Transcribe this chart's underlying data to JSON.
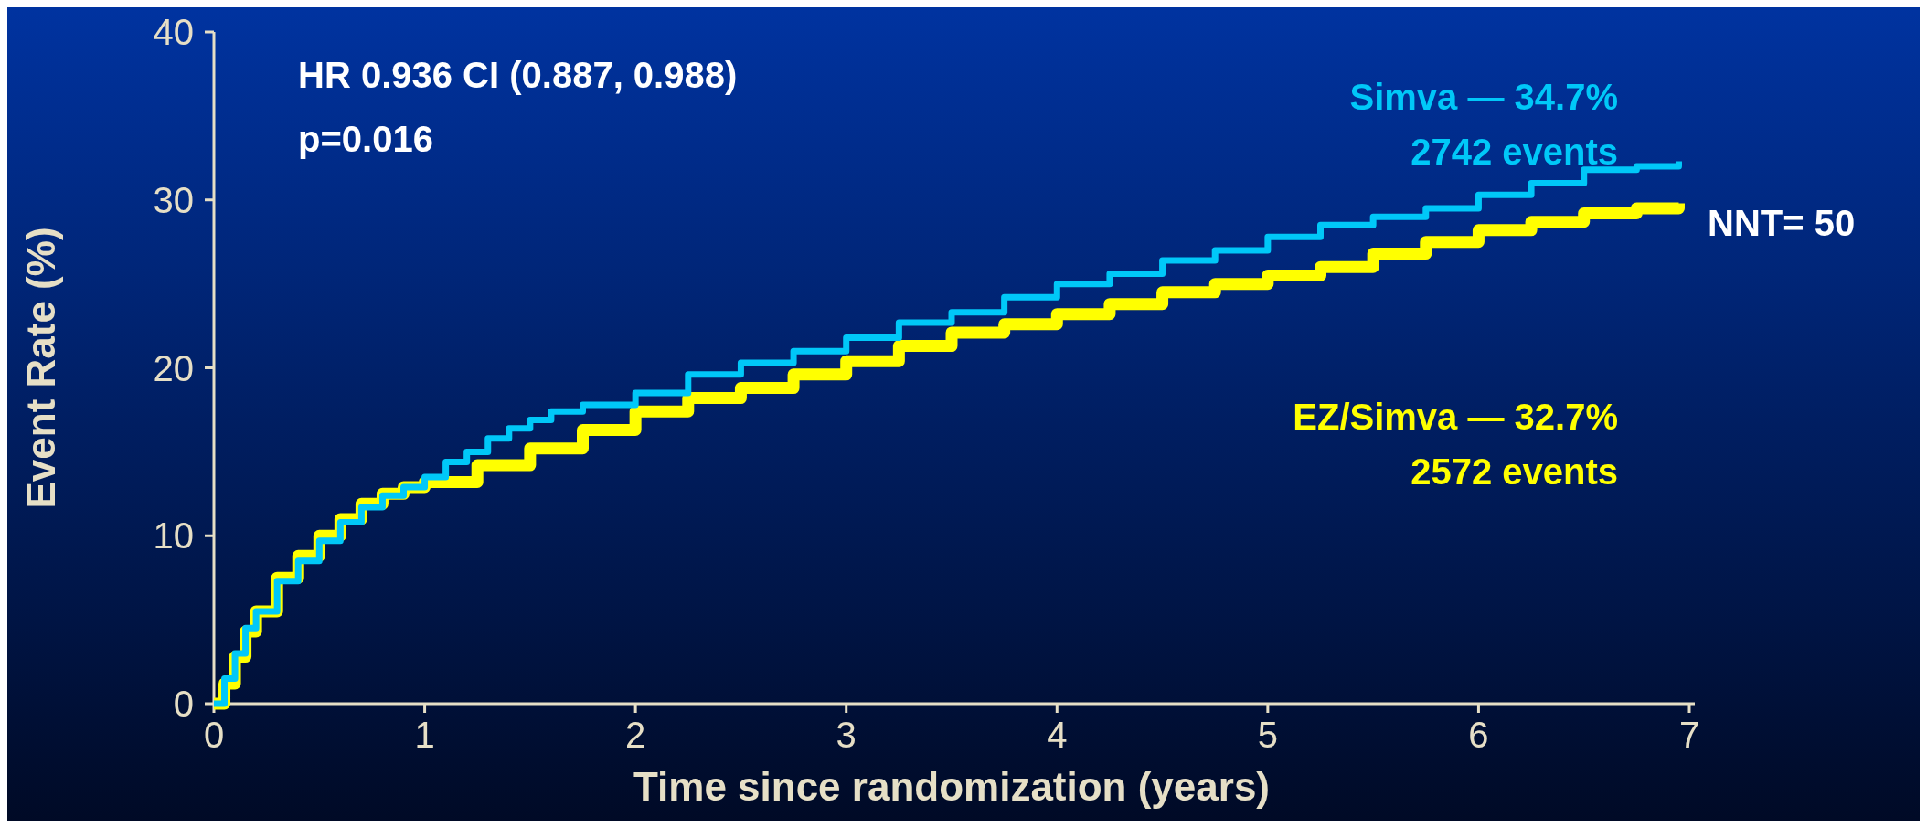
{
  "chart_data": {
    "type": "step",
    "xlabel": "Time since randomization (years)",
    "ylabel": "Event Rate (%)",
    "xlim": [
      0,
      7
    ],
    "xticks": [
      0,
      1,
      2,
      3,
      4,
      5,
      6,
      7
    ],
    "ylim": [
      0,
      40
    ],
    "yticks": [
      0,
      10,
      20,
      30,
      40
    ],
    "annotations": [
      "HR 0.936 CI (0.887, 0.988)",
      "p=0.016",
      "2742 events",
      "2572 events",
      "NNT= 50"
    ],
    "series": [
      {
        "name": "Simva — 34.7%",
        "color": "#00c8f8",
        "x": [
          0,
          0.05,
          0.1,
          0.15,
          0.2,
          0.3,
          0.4,
          0.5,
          0.6,
          0.7,
          0.8,
          0.9,
          1,
          1.1,
          1.2,
          1.3,
          1.4,
          1.5,
          1.6,
          1.75,
          2,
          2.25,
          2.5,
          2.75,
          3,
          3.25,
          3.5,
          3.75,
          4,
          4.25,
          4.5,
          4.75,
          5,
          5.25,
          5.5,
          5.75,
          6,
          6.25,
          6.5,
          6.75,
          6.95
        ],
        "values": [
          0,
          1.5,
          3,
          4.5,
          5.5,
          7.3,
          8.5,
          9.7,
          10.8,
          11.7,
          12.4,
          12.9,
          13.5,
          14.4,
          15,
          15.8,
          16.4,
          16.9,
          17.4,
          17.8,
          18.5,
          19.6,
          20.3,
          21,
          21.8,
          22.7,
          23.3,
          24.2,
          25,
          25.6,
          26.4,
          27,
          27.8,
          28.5,
          29,
          29.5,
          30.3,
          31,
          31.8,
          32,
          32.3
        ]
      },
      {
        "name": "EZ/Simva — 32.7%",
        "color": "#ffff00",
        "x": [
          0,
          0.05,
          0.1,
          0.15,
          0.2,
          0.3,
          0.4,
          0.5,
          0.6,
          0.7,
          0.8,
          0.9,
          1,
          1.25,
          1.5,
          1.75,
          2,
          2.25,
          2.5,
          2.75,
          3,
          3.25,
          3.5,
          3.75,
          4,
          4.25,
          4.5,
          4.75,
          5,
          5.25,
          5.5,
          5.75,
          6,
          6.25,
          6.5,
          6.75,
          6.95
        ],
        "values": [
          0,
          1.2,
          2.8,
          4.3,
          5.5,
          7.5,
          8.8,
          10,
          11,
          11.9,
          12.5,
          12.9,
          13.2,
          14.2,
          15.2,
          16.3,
          17.4,
          18.2,
          18.8,
          19.6,
          20.4,
          21.3,
          22.1,
          22.6,
          23.2,
          23.8,
          24.5,
          25,
          25.5,
          26,
          26.8,
          27.5,
          28.2,
          28.7,
          29.2,
          29.5,
          29.8
        ]
      }
    ]
  }
}
